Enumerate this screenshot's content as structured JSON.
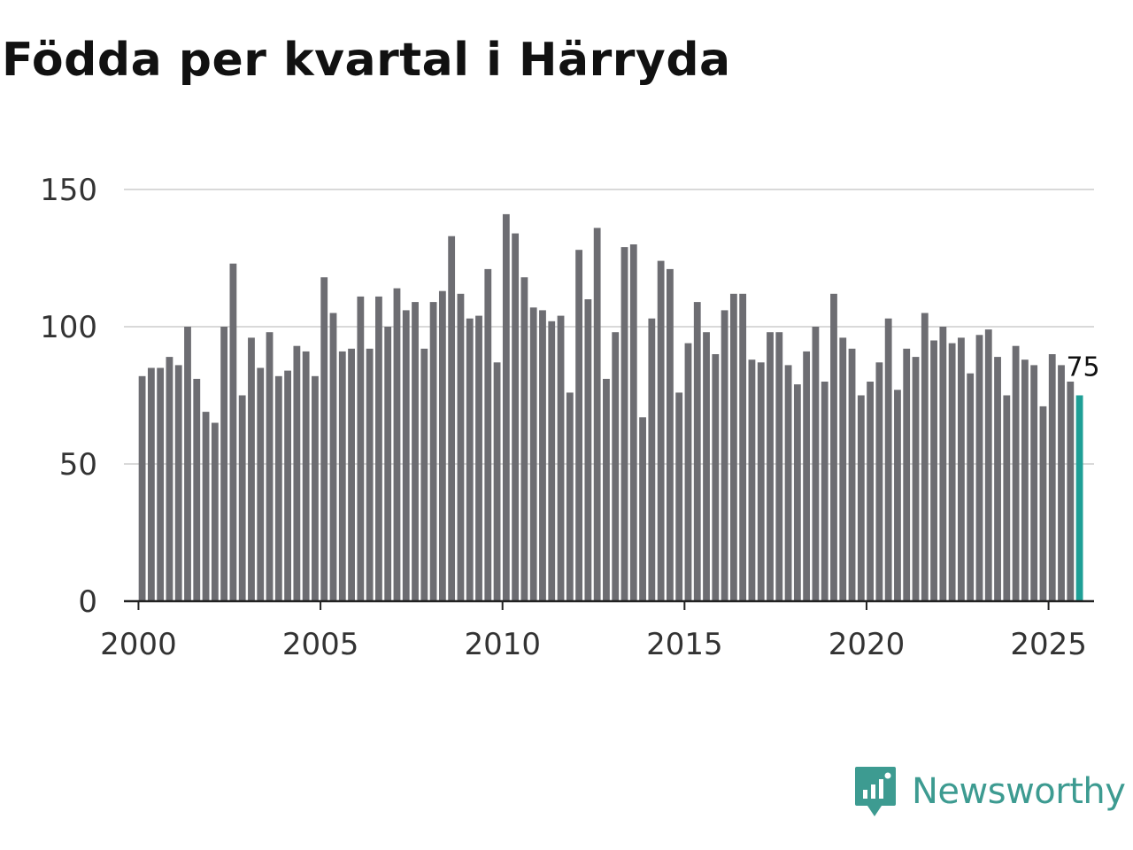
{
  "title": "Födda per kvartal i Härryda",
  "brand": "Newsworthy",
  "colors": {
    "bar": "#6d6d72",
    "highlight": "#1e9f96",
    "grid": "#d9d9d9",
    "axis": "#222222",
    "brand": "#3d9b91"
  },
  "chart_data": {
    "type": "bar",
    "title": "Födda per kvartal i Härryda",
    "xlabel": "",
    "ylabel": "",
    "ylim": [
      0,
      150
    ],
    "yticks": [
      0,
      50,
      100,
      150
    ],
    "xticks": [
      2000,
      2005,
      2010,
      2015,
      2020,
      2025
    ],
    "xlim": [
      1999.6,
      2026.25
    ],
    "period": "quarter",
    "start": "2000Q1",
    "values": [
      82,
      85,
      85,
      89,
      86,
      100,
      81,
      69,
      65,
      100,
      123,
      75,
      96,
      85,
      98,
      82,
      84,
      93,
      91,
      82,
      118,
      105,
      91,
      92,
      111,
      92,
      111,
      100,
      114,
      106,
      109,
      92,
      109,
      113,
      133,
      112,
      103,
      104,
      121,
      87,
      141,
      134,
      118,
      107,
      106,
      102,
      104,
      76,
      128,
      110,
      136,
      81,
      98,
      129,
      130,
      67,
      103,
      124,
      121,
      76,
      94,
      109,
      98,
      90,
      106,
      112,
      112,
      88,
      87,
      98,
      98,
      86,
      79,
      91,
      100,
      80,
      112,
      96,
      92,
      75,
      80,
      87,
      103,
      77,
      92,
      89,
      105,
      95,
      100,
      94,
      96,
      83,
      97,
      99,
      89,
      75,
      93,
      88,
      86,
      71,
      90,
      86,
      80,
      75
    ],
    "highlight_last": true,
    "last_label": "75"
  }
}
